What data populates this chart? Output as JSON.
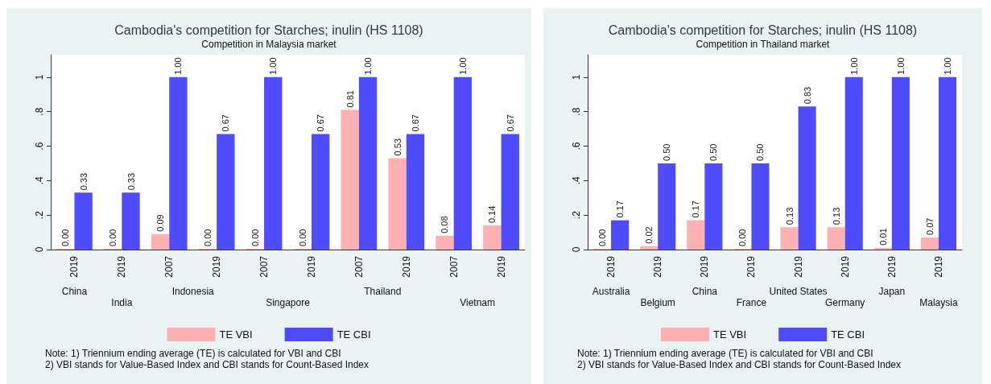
{
  "chart_data": [
    {
      "type": "bar",
      "title": "Cambodia's competition for Starches; inulin (HS 1108)",
      "subtitle": "Competition in Malaysia market",
      "categories": [
        "2019",
        "2019",
        "2007",
        "2019",
        "2007",
        "2019",
        "2007",
        "2019",
        "2007",
        "2019"
      ],
      "series": [
        {
          "name": "TE VBI",
          "color": "#ffb0b0",
          "values": [
            0.0,
            0.0,
            0.09,
            0.0,
            0.0,
            0.0,
            0.81,
            0.53,
            0.08,
            0.14
          ],
          "value_labels": [
            "0.00",
            "0.00",
            "0.09",
            "0.00",
            "0.00",
            "0.00",
            "0.81",
            "0.53",
            "0.08",
            "0.14"
          ]
        },
        {
          "name": "TE CBI",
          "color": "#4f4bff",
          "values": [
            0.33,
            0.33,
            1.0,
            0.67,
            1.0,
            0.67,
            1.0,
            0.67,
            1.0,
            0.67
          ],
          "value_labels": [
            "0.33",
            "0.33",
            "1.00",
            "0.67",
            "1.00",
            "0.67",
            "1.00",
            "0.67",
            "1.00",
            "0.67"
          ]
        }
      ],
      "ylim": [
        0,
        1.13
      ],
      "yticks": [
        {
          "value": 0,
          "label": "0"
        },
        {
          "value": 0.2,
          "label": ".2"
        },
        {
          "value": 0.4,
          "label": ".4"
        },
        {
          "value": 0.6,
          "label": ".6"
        },
        {
          "value": 0.8,
          "label": ".8"
        },
        {
          "value": 1,
          "label": "1"
        }
      ],
      "grid": false,
      "legend": "bottom",
      "annotations": [
        "China",
        "India",
        "Indonesia",
        "Singapore",
        "Thailand",
        "Vietnam",
        "Note: 1) Triennium ending average (TE) is calculated for VBI and CBI",
        "2) VBI stands for Value-Based Index and CBI stands for Count-Based Index"
      ]
    },
    {
      "type": "bar",
      "title": "Cambodia's competition for Starches; inulin (HS 1108)",
      "subtitle": "Competition in Thailand market",
      "categories": [
        "2019",
        "2019",
        "2019",
        "2019",
        "2019",
        "2019",
        "2019",
        "2019"
      ],
      "series": [
        {
          "name": "TE VBI",
          "color": "#ffb0b0",
          "values": [
            0.0,
            0.02,
            0.17,
            0.0,
            0.13,
            0.13,
            0.01,
            0.07
          ],
          "value_labels": [
            "0.00",
            "0.02",
            "0.17",
            "0.00",
            "0.13",
            "0.13",
            "0.01",
            "0.07"
          ]
        },
        {
          "name": "TE CBI",
          "color": "#4f4bff",
          "values": [
            0.17,
            0.5,
            0.5,
            0.5,
            0.83,
            1.0,
            1.0,
            1.0
          ],
          "value_labels": [
            "0.17",
            "0.50",
            "0.50",
            "0.50",
            "0.83",
            "1.00",
            "1.00",
            "1.00"
          ]
        }
      ],
      "ylim": [
        0,
        1.13
      ],
      "yticks": [
        {
          "value": 0,
          "label": "0"
        },
        {
          "value": 0.2,
          "label": ".2"
        },
        {
          "value": 0.4,
          "label": ".4"
        },
        {
          "value": 0.6,
          "label": ".6"
        },
        {
          "value": 0.8,
          "label": ".8"
        },
        {
          "value": 1,
          "label": "1"
        }
      ],
      "grid": false,
      "legend": "bottom",
      "annotations": [
        "Australia",
        "Belgium",
        "China",
        "France",
        "United States",
        "Germany",
        "Japan",
        "Malaysia",
        "Note: 1) Triennium ending average (TE) is calculated for VBI and CBI",
        "2) VBI stands for Value-Based Index and CBI stands for Count-Based Index"
      ]
    }
  ]
}
